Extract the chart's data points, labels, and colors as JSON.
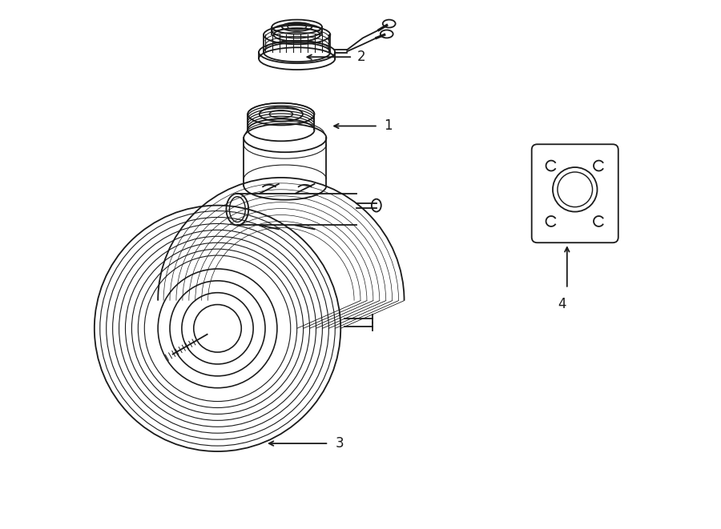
{
  "bg_color": "#ffffff",
  "line_color": "#1a1a1a",
  "line_width": 1.3,
  "fig_width": 9.0,
  "fig_height": 6.61,
  "dpi": 100
}
